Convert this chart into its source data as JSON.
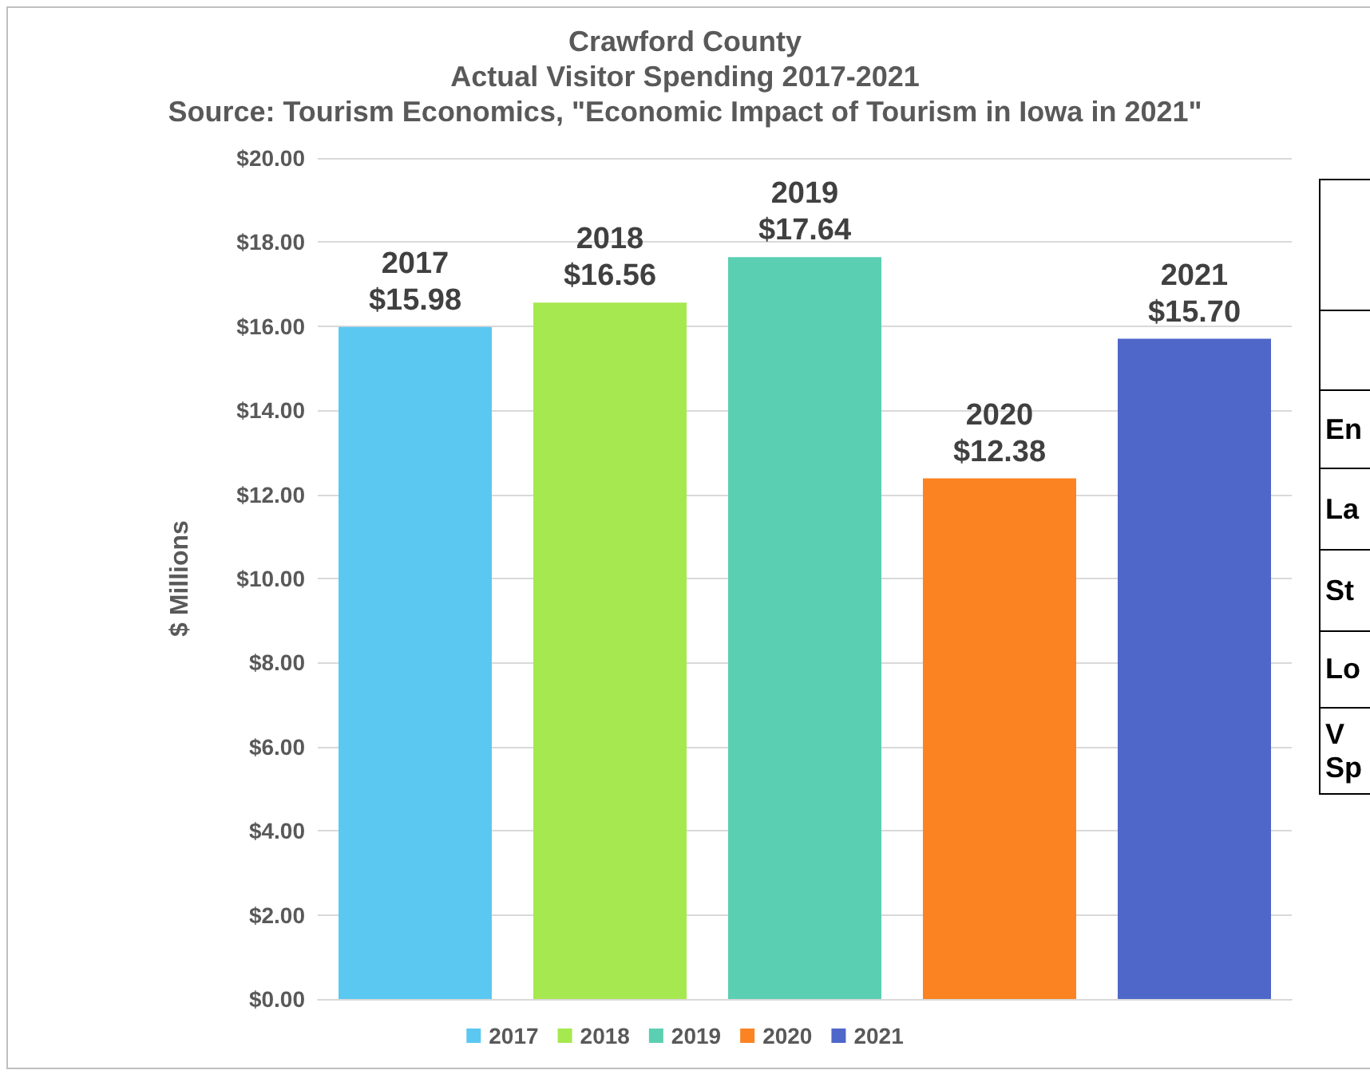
{
  "chart_data": {
    "type": "bar",
    "title": "Crawford County",
    "subtitle": "Actual Visitor Spending 2017-2021",
    "annotations": [
      "Source: Tourism Economics, \"Economic Impact of Tourism in Iowa in 2021\"",
      "En",
      "La",
      "St",
      "Lo",
      "V\nSp"
    ],
    "ylabel": "$ Millions",
    "categories": [
      null,
      null,
      null,
      null,
      null
    ],
    "stacked": true,
    "series": [
      {
        "name": "2017",
        "color": "#5bc8f2",
        "values": [
          15.98,
          null,
          null,
          null,
          null
        ],
        "value_labels": [
          "2017\n$15.98",
          null,
          null,
          null,
          null
        ]
      },
      {
        "name": "2018",
        "color": "#a6e84f",
        "values": [
          null,
          16.56,
          null,
          null,
          null
        ],
        "value_labels": [
          null,
          "2018\n$16.56",
          null,
          null,
          null
        ]
      },
      {
        "name": "2019",
        "color": "#5bcfb2",
        "values": [
          null,
          null,
          17.64,
          null,
          null
        ],
        "value_labels": [
          null,
          null,
          "2019\n$17.64",
          null,
          null
        ]
      },
      {
        "name": "2020",
        "color": "#fb8321",
        "values": [
          null,
          null,
          null,
          12.38,
          null
        ],
        "value_labels": [
          null,
          null,
          null,
          "2020\n$12.38",
          null
        ]
      },
      {
        "name": "2021",
        "color": "#4f67c9",
        "values": [
          null,
          null,
          null,
          null,
          15.7
        ],
        "value_labels": [
          null,
          null,
          null,
          null,
          "2021\n$15.70"
        ]
      }
    ],
    "ylim": [
      0,
      20
    ],
    "yticks": [
      {
        "value": 0,
        "label": "$0.00"
      },
      {
        "value": 2,
        "label": "$2.00"
      },
      {
        "value": 4,
        "label": "$4.00"
      },
      {
        "value": 6,
        "label": "$6.00"
      },
      {
        "value": 8,
        "label": "$8.00"
      },
      {
        "value": 10,
        "label": "$10.00"
      },
      {
        "value": 12,
        "label": "$12.00"
      },
      {
        "value": 14,
        "label": "$14.00"
      },
      {
        "value": 16,
        "label": "$16.00"
      },
      {
        "value": 18,
        "label": "$18.00"
      },
      {
        "value": 20,
        "label": "$20.00"
      }
    ],
    "grid": "y",
    "legend": "bottom"
  }
}
